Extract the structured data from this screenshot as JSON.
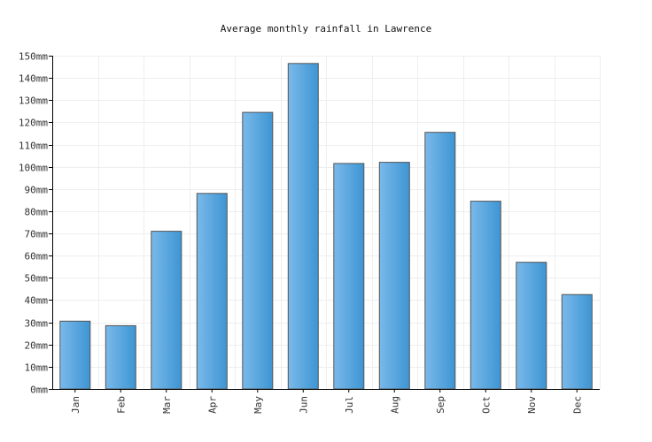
{
  "chart_data": {
    "type": "bar",
    "title": "Average monthly rainfall in Lawrence",
    "xlabel": "",
    "ylabel": "",
    "categories": [
      "Jan",
      "Feb",
      "Mar",
      "Apr",
      "May",
      "Jun",
      "Jul",
      "Aug",
      "Sep",
      "Oct",
      "Nov",
      "Dec"
    ],
    "values": [
      30.5,
      28.5,
      71,
      88,
      124.5,
      146.5,
      101.5,
      102,
      115.5,
      84.5,
      57,
      42.5
    ],
    "ylim": [
      0,
      150
    ],
    "yticks": [
      0,
      10,
      20,
      30,
      40,
      50,
      60,
      70,
      80,
      90,
      100,
      110,
      120,
      130,
      140,
      150
    ],
    "ytick_labels": [
      "0mm",
      "10mm",
      "20mm",
      "30mm",
      "40mm",
      "50mm",
      "60mm",
      "70mm",
      "80mm",
      "90mm",
      "100mm",
      "110mm",
      "120mm",
      "130mm",
      "140mm",
      "150mm"
    ],
    "grid": true,
    "legend": "none",
    "colors": {
      "bar_light": "#7ab9ea",
      "bar_dark": "#3d95d3",
      "bar_stroke": "#555555",
      "grid": "#eeeeee",
      "axis": "#000000"
    }
  }
}
